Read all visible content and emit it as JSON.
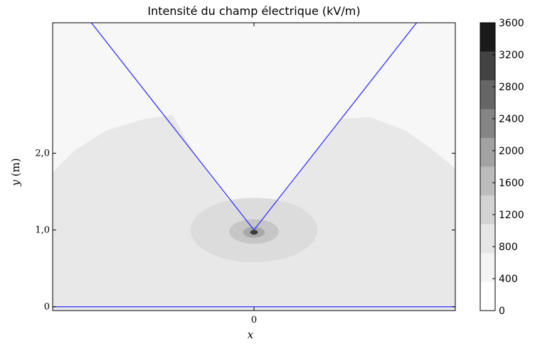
{
  "chart_data": {
    "type": "heatmap",
    "title": "Intensité du champ électrique (kV/m)",
    "xlabel": "x",
    "ylabel_var": "y",
    "ylabel_unit": " (m)",
    "x_ticks": [
      {
        "value": 0,
        "label": "0"
      }
    ],
    "y_ticks": [
      {
        "value": 0,
        "label": "0"
      },
      {
        "value": 1.0,
        "label": "1,0"
      },
      {
        "value": 2.0,
        "label": "2,0"
      }
    ],
    "xlim": [
      -2.6,
      2.6
    ],
    "ylim": [
      -0.05,
      3.7
    ],
    "colorbar": {
      "min": 0,
      "max": 3600,
      "ticks": [
        0,
        400,
        800,
        1200,
        1600,
        2000,
        2400,
        2800,
        3200,
        3600
      ],
      "level_colors": [
        "#ffffff",
        "#f4f4f4",
        "#e6e6e6",
        "#d3d3d3",
        "#bcbcbc",
        "#a2a2a2",
        "#858585",
        "#666666",
        "#434343",
        "#1a1a1a"
      ]
    },
    "background_level_color": "#f7f7f7",
    "regions": [
      {
        "level": "0-400",
        "shape": "cone-shadowed-ground-region"
      },
      {
        "level": "400-800",
        "center": [
          0,
          1.0
        ],
        "rx": 0.82,
        "ry": 0.42
      },
      {
        "level": "800-1200",
        "center": [
          0,
          0.98
        ],
        "rx": 0.32,
        "ry": 0.16
      },
      {
        "level": "1200-1600",
        "center": [
          0,
          0.97
        ],
        "rx": 0.14,
        "ry": 0.07
      },
      {
        "level": "2400-3600",
        "center": [
          0,
          0.97
        ],
        "rx": 0.05,
        "ry": 0.03
      }
    ],
    "lines": [
      {
        "name": "cone-left",
        "color": "#3333ff",
        "points": [
          [
            -2.1,
            3.7
          ],
          [
            0,
            1.0
          ]
        ]
      },
      {
        "name": "cone-right",
        "color": "#3333ff",
        "points": [
          [
            0,
            1.0
          ],
          [
            2.1,
            3.7
          ]
        ]
      },
      {
        "name": "ground",
        "color": "#3333ff",
        "points": [
          [
            -2.6,
            0.0
          ],
          [
            2.6,
            0.0
          ]
        ]
      }
    ],
    "grid": false,
    "legend": "colorbar-right"
  }
}
